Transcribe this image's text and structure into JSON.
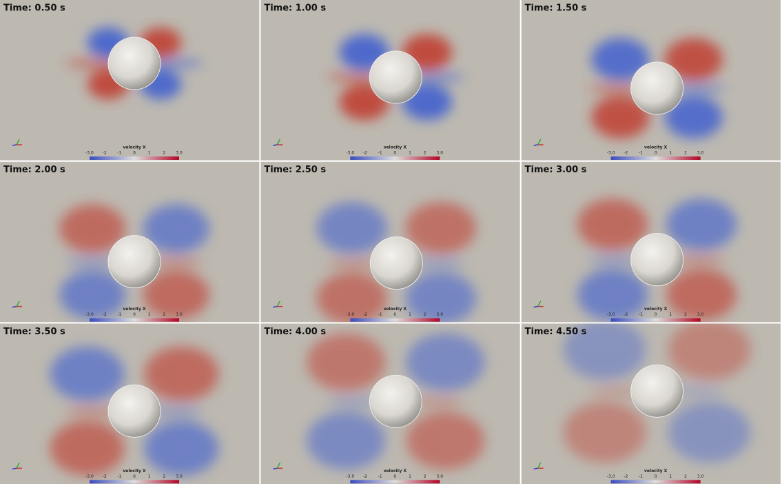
{
  "panels": [
    {
      "time_label": "Time: 0.50 s"
    },
    {
      "time_label": "Time: 1.00 s"
    },
    {
      "time_label": "Time: 1.50 s"
    },
    {
      "time_label": "Time: 2.00 s"
    },
    {
      "time_label": "Time: 2.50 s"
    },
    {
      "time_label": "Time: 3.00 s"
    },
    {
      "time_label": "Time: 3.50 s"
    },
    {
      "time_label": "Time: 4.00 s"
    },
    {
      "time_label": "Time: 4.50 s"
    }
  ],
  "colorbar": {
    "title": "velocity X",
    "tick_labels": [
      "-3.0",
      "-2",
      "-1",
      "0",
      "1",
      "2",
      "3.0"
    ]
  }
}
